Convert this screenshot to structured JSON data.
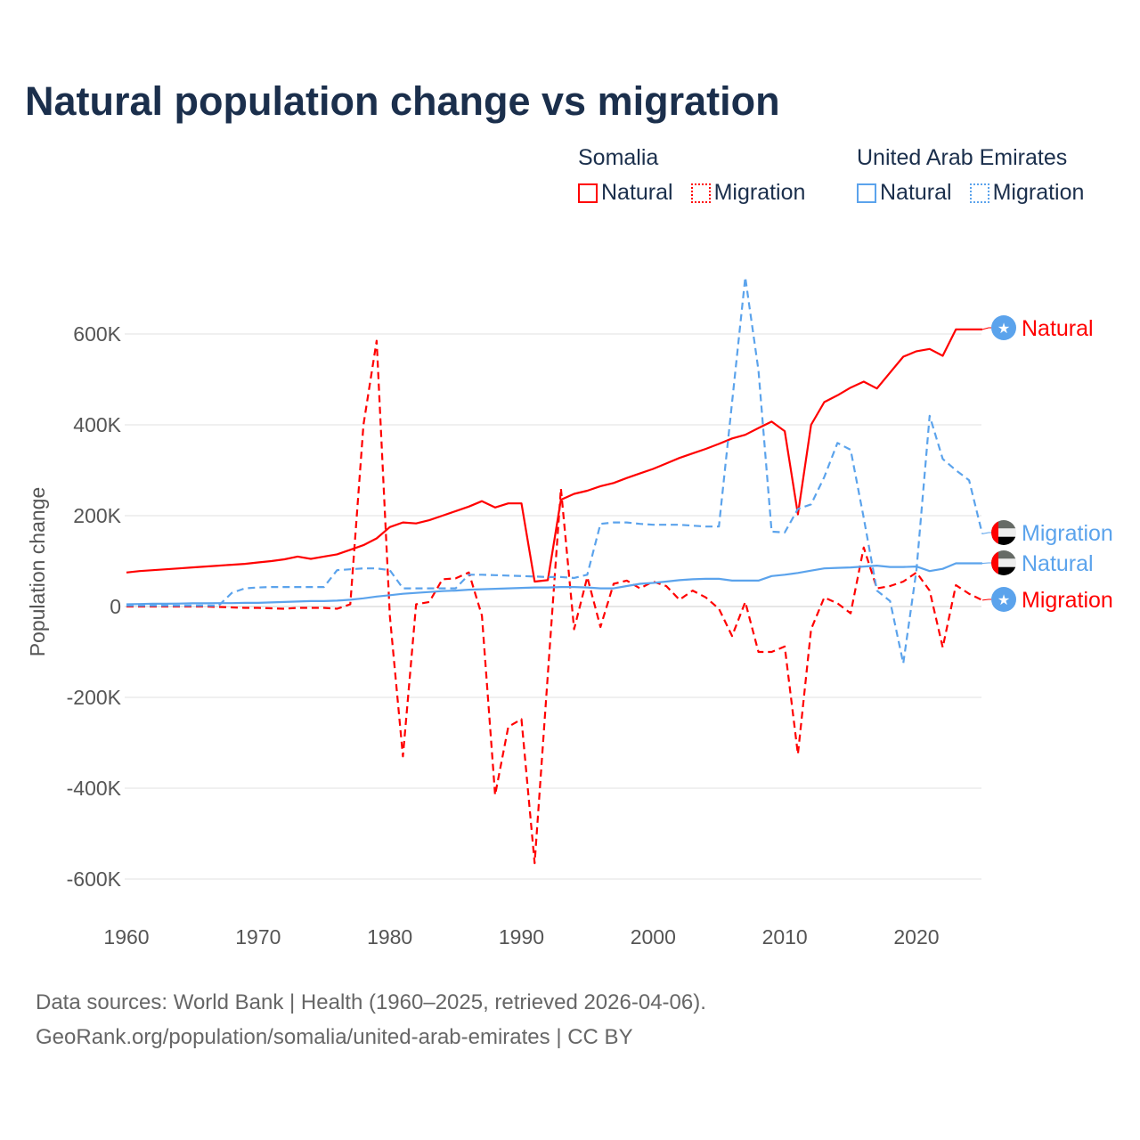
{
  "chart_data": {
    "type": "line",
    "title": "Natural population change vs migration",
    "xlabel": "",
    "ylabel": "Population change",
    "xlim": [
      1960,
      2025
    ],
    "ylim": [
      -600000,
      700000
    ],
    "x_ticks": [
      1960,
      1970,
      1980,
      1990,
      2000,
      2010,
      2020
    ],
    "x_tick_labels": [
      "1960",
      "1970",
      "1980",
      "1990",
      "2000",
      "2010",
      "2020"
    ],
    "y_ticks": [
      -600000,
      -400000,
      -200000,
      0,
      200000,
      400000,
      600000
    ],
    "y_tick_labels": [
      "-600K",
      "-400K",
      "-200K",
      "0",
      "200K",
      "400K",
      "600K"
    ],
    "grid": true,
    "legend_placement": "top-right",
    "legend": {
      "groups": [
        {
          "name": "Somalia",
          "items": [
            "Natural",
            "Migration"
          ]
        },
        {
          "name": "United Arab Emirates",
          "items": [
            "Natural",
            "Migration"
          ]
        }
      ]
    },
    "x": [
      1960,
      1961,
      1962,
      1963,
      1964,
      1965,
      1966,
      1967,
      1968,
      1969,
      1970,
      1971,
      1972,
      1973,
      1974,
      1975,
      1976,
      1977,
      1978,
      1979,
      1980,
      1981,
      1982,
      1983,
      1984,
      1985,
      1986,
      1987,
      1988,
      1989,
      1990,
      1991,
      1992,
      1993,
      1994,
      1995,
      1996,
      1997,
      1998,
      1999,
      2000,
      2001,
      2002,
      2003,
      2004,
      2005,
      2006,
      2007,
      2008,
      2009,
      2010,
      2011,
      2012,
      2013,
      2014,
      2015,
      2016,
      2017,
      2018,
      2019,
      2020,
      2021,
      2022,
      2023,
      2024,
      2025
    ],
    "series": [
      {
        "name": "Natural",
        "country": "Somalia",
        "color": "#ff0000",
        "dash": "solid",
        "end_label": "Natural",
        "flag": "somalia",
        "values": [
          75000,
          78000,
          80000,
          82000,
          84000,
          86000,
          88000,
          90000,
          92000,
          94000,
          97000,
          100000,
          104000,
          110000,
          105000,
          110000,
          115000,
          125000,
          135000,
          150000,
          175000,
          185000,
          183000,
          190000,
          200000,
          210000,
          220000,
          232000,
          218000,
          227000,
          227000,
          55000,
          58000,
          235000,
          248000,
          255000,
          265000,
          272000,
          283000,
          293000,
          303000,
          315000,
          327000,
          337000,
          347000,
          358000,
          370000,
          378000,
          393000,
          407000,
          386000,
          203000,
          400000,
          450000,
          465000,
          482000,
          495000,
          480000,
          515000,
          550000,
          562000,
          567000,
          552000,
          610000,
          610000,
          610000
        ]
      },
      {
        "name": "Migration",
        "country": "Somalia",
        "color": "#ff0000",
        "dash": "dashed",
        "end_label": "Migration",
        "flag": "somalia",
        "values": [
          0,
          0,
          0,
          0,
          0,
          0,
          0,
          -1000,
          -2000,
          -3000,
          -3000,
          -4000,
          -5000,
          -3000,
          -3000,
          -3000,
          -5000,
          5000,
          400000,
          585000,
          -20000,
          -330000,
          5000,
          10000,
          60000,
          62000,
          75000,
          -20000,
          -415000,
          -265000,
          -248000,
          -565000,
          -150000,
          260000,
          -50000,
          65000,
          -45000,
          50000,
          57000,
          40000,
          55000,
          45000,
          15000,
          35000,
          20000,
          -5000,
          -65000,
          10000,
          -100000,
          -100000,
          -88000,
          -325000,
          -50000,
          20000,
          7000,
          -15000,
          130000,
          40000,
          45000,
          55000,
          75000,
          35000,
          -90000,
          47000,
          28000,
          14000
        ]
      },
      {
        "name": "Natural",
        "country": "United Arab Emirates",
        "color": "#5ba3ec",
        "dash": "solid",
        "end_label": "Natural",
        "flag": "uae",
        "values": [
          5000,
          5500,
          6000,
          6000,
          6500,
          7000,
          7000,
          7500,
          7500,
          8000,
          8000,
          9000,
          10000,
          11000,
          12000,
          12000,
          13000,
          15000,
          18000,
          22000,
          25000,
          28000,
          30000,
          32000,
          34000,
          35000,
          37000,
          38000,
          39000,
          40000,
          41000,
          42000,
          42000,
          43000,
          43000,
          42000,
          40000,
          40000,
          45000,
          50000,
          52000,
          55000,
          58000,
          60000,
          61000,
          61000,
          57000,
          57000,
          57000,
          67000,
          70000,
          74000,
          79000,
          84000,
          85000,
          86000,
          88000,
          90000,
          87000,
          87000,
          88000,
          78000,
          83000,
          95000,
          95000,
          95000
        ]
      },
      {
        "name": "Migration",
        "country": "United Arab Emirates",
        "color": "#5ba3ec",
        "dash": "dashed",
        "end_label": "Migration",
        "flag": "uae",
        "values": [
          2000,
          2000,
          2000,
          2000,
          2000,
          2000,
          2000,
          2000,
          30000,
          40000,
          42000,
          43000,
          43000,
          43000,
          43000,
          43000,
          80000,
          82000,
          84000,
          84000,
          80000,
          40000,
          40000,
          40000,
          40000,
          40000,
          70000,
          70000,
          69000,
          68000,
          67000,
          66000,
          65000,
          65000,
          63000,
          70000,
          182000,
          185000,
          185000,
          182000,
          180000,
          180000,
          180000,
          178000,
          176000,
          176000,
          450000,
          725000,
          520000,
          165000,
          163000,
          215000,
          225000,
          285000,
          360000,
          345000,
          195000,
          35000,
          12000,
          -125000,
          80000,
          420000,
          325000,
          300000,
          278000,
          160000
        ]
      }
    ]
  },
  "footer": {
    "line1": "Data sources: World Bank | Health (1960–2025, retrieved 2026-04-06).",
    "line2": "GeoRank.org/population/somalia/united-arab-emirates | CC BY"
  }
}
